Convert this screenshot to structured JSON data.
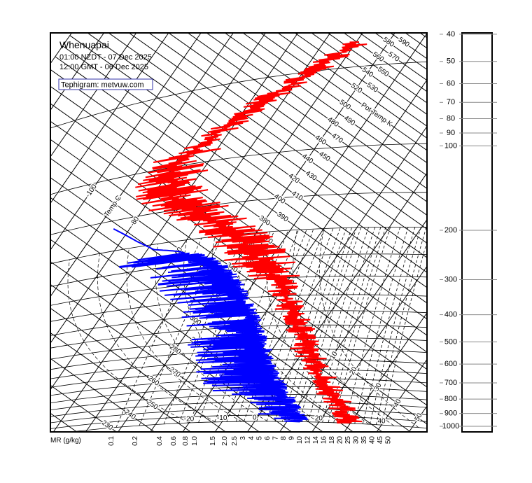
{
  "header": {
    "station": "Whenuapai",
    "local_time": "01:00 NZDT - 07 Dec 2025",
    "gmt_time": "12:00 GMT - 06 Dec 2025",
    "credit": "Tephigram: metvuw.com"
  },
  "chart_data": {
    "type": "line",
    "diagram": "tephigram",
    "x_axis_label": "MR (g/kg)",
    "isentrope_axis_label": "Pot Temp K",
    "isotherm_axis_label": "Temp C",
    "pressure_ticks": [
      40,
      50,
      60,
      70,
      80,
      90,
      100,
      200,
      300,
      400,
      500,
      600,
      700,
      800,
      900,
      1000
    ],
    "mixing_ratio_ticks": [
      "0.1",
      "0.2",
      "0.4",
      "0.6",
      "0.8",
      "1.0",
      "1.5",
      "2.0",
      "2.5",
      "3",
      "4",
      "5",
      "6",
      "7",
      "8",
      "9",
      "10",
      "12",
      "14",
      "16",
      "18",
      "20",
      "25",
      "30",
      "35",
      "40",
      "45",
      "50"
    ],
    "isentrope_labels": [
      230,
      240,
      250,
      260,
      270,
      280,
      290,
      300,
      310,
      320,
      330,
      340,
      350,
      360,
      370,
      380,
      390,
      400,
      410,
      420,
      430,
      440,
      450,
      460,
      470,
      480,
      490,
      500,
      520,
      530,
      540,
      550,
      560,
      570,
      580,
      590
    ],
    "isotherm_labels_upper": [
      "-100",
      "-80",
      "-60"
    ],
    "isotherm_labels_lower": [
      "-20",
      "-10",
      "0",
      "10",
      "20",
      "30",
      "40"
    ],
    "wet_bulb_labels": [
      "10",
      "20",
      "30",
      "40",
      "50"
    ],
    "colors": {
      "temperature": "#ff0000",
      "dewpoint": "#0000ff",
      "grid": "#000000",
      "credit_box": "#3333aa"
    },
    "series": [
      {
        "key": "temperature",
        "units": "hPa, degC",
        "points": [
          [
            1000,
            29
          ],
          [
            950,
            27
          ],
          [
            900,
            25
          ],
          [
            850,
            22
          ],
          [
            800,
            18.5
          ],
          [
            750,
            15
          ],
          [
            700,
            11.7
          ],
          [
            650,
            8
          ],
          [
            600,
            4.4
          ],
          [
            550,
            0.5
          ],
          [
            500,
            -3.2
          ],
          [
            450,
            -7.5
          ],
          [
            400,
            -12
          ],
          [
            350,
            -17.5
          ],
          [
            300,
            -23.5
          ],
          [
            250,
            -34
          ],
          [
            200,
            -46
          ],
          [
            175,
            -55
          ],
          [
            150,
            -66
          ],
          [
            135,
            -73
          ],
          [
            120,
            -76
          ],
          [
            100,
            -80
          ],
          [
            90,
            -78
          ],
          [
            80,
            -74
          ],
          [
            70,
            -70
          ],
          [
            60,
            -65
          ],
          [
            54,
            -60
          ],
          [
            47,
            -55
          ],
          [
            40,
            -49
          ]
        ]
      },
      {
        "key": "dewpoint",
        "units": "hPa, degC",
        "points": [
          [
            1000,
            14
          ],
          [
            950,
            12
          ],
          [
            900,
            9.5
          ],
          [
            850,
            6
          ],
          [
            800,
            3
          ],
          [
            750,
            0
          ],
          [
            700,
            -3.7
          ],
          [
            650,
            -7
          ],
          [
            600,
            -9.8
          ],
          [
            550,
            -13
          ],
          [
            500,
            -16.5
          ],
          [
            450,
            -20.5
          ],
          [
            400,
            -25
          ],
          [
            350,
            -30.5
          ],
          [
            300,
            -37
          ],
          [
            250,
            -47
          ],
          [
            220,
            -60
          ],
          [
            210,
            -68
          ],
          [
            190,
            -75
          ],
          [
            162,
            -85
          ]
        ]
      }
    ]
  }
}
